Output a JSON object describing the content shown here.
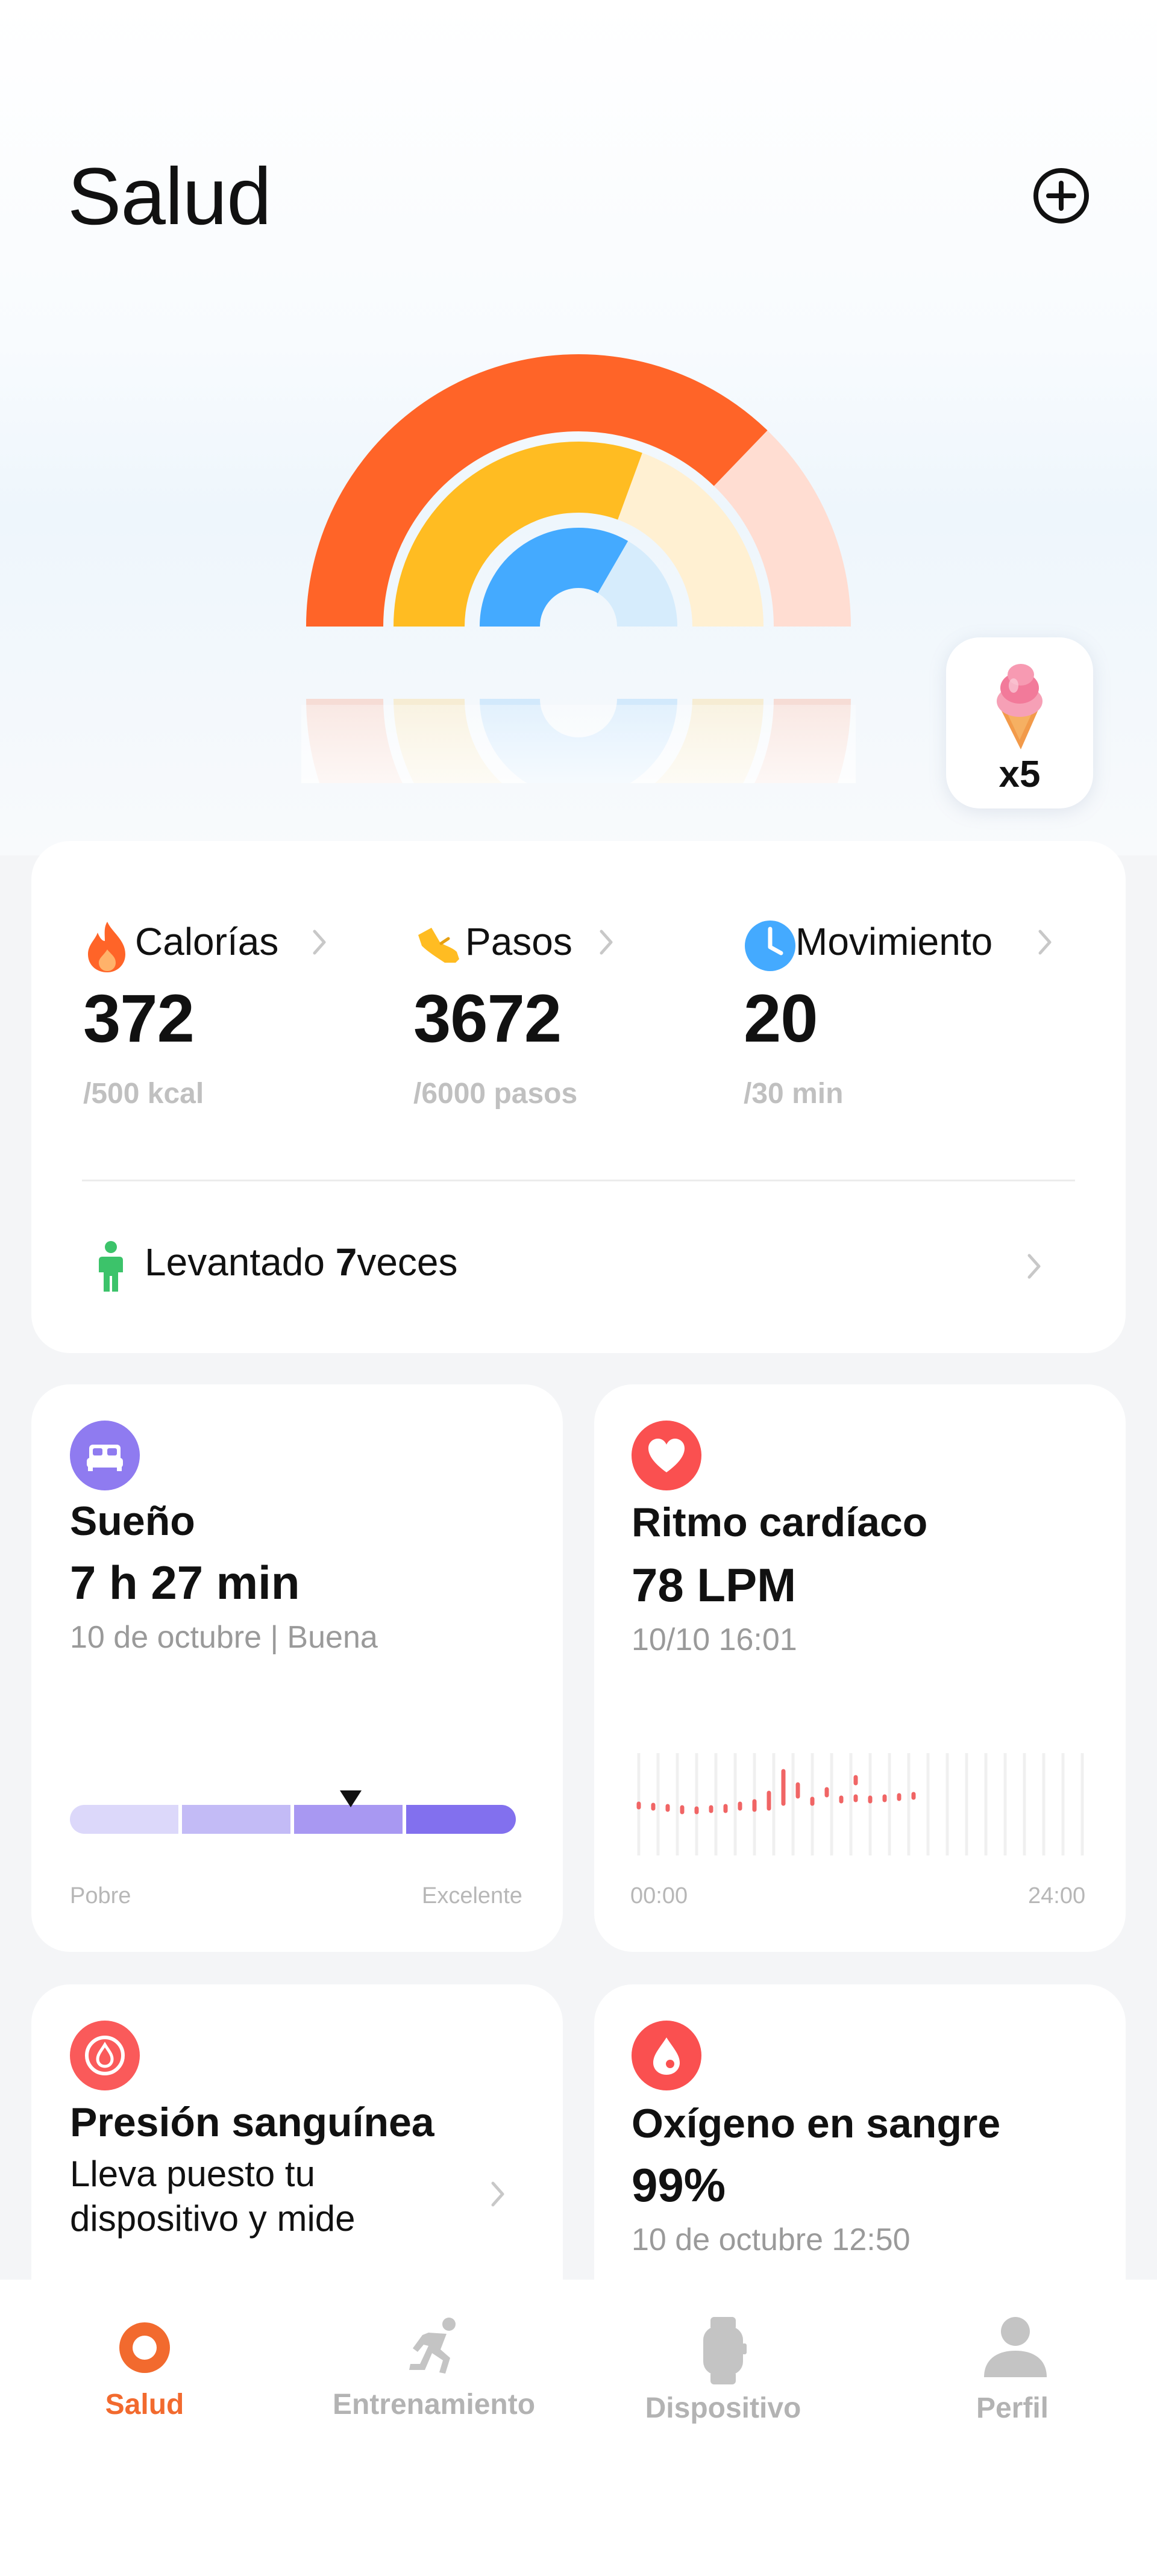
{
  "header": {
    "title": "Salud"
  },
  "colors": {
    "calories": "#ff6428",
    "steps": "#ffbc22",
    "movement": "#44aaff",
    "sleep": "#8f7bf0",
    "heart": "#fa5050",
    "nav_active": "#f26a2e"
  },
  "rings": [
    {
      "metric": "Calorías",
      "progress": 0.744
    },
    {
      "metric": "Pasos",
      "progress": 0.612
    },
    {
      "metric": "Movimiento",
      "progress": 0.667
    }
  ],
  "reward": {
    "icon": "ice-cream-icon",
    "count": "x5"
  },
  "activity": {
    "stats": [
      {
        "icon": "flame-icon",
        "label": "Calorías",
        "value": "372",
        "goal": "/500 kcal"
      },
      {
        "icon": "shoe-icon",
        "label": "Pasos",
        "value": "3672",
        "goal": "/6000 pasos"
      },
      {
        "icon": "clock-icon",
        "label": "Movimiento",
        "value": "20",
        "goal": "/30 min"
      }
    ],
    "stood": {
      "prefix": "Levantado ",
      "count": "7",
      "suffix": "veces"
    }
  },
  "sleep": {
    "title": "Sueño",
    "value": "7 h 27 min",
    "subtitle": "10 de octubre | Buena",
    "scale_min": "Pobre",
    "scale_max": "Excelente",
    "quality_level": 0.63
  },
  "heart": {
    "title": "Ritmo cardíaco",
    "value": "78 LPM",
    "subtitle": "10/10 16:01",
    "axis_start": "00:00",
    "axis_end": "24:00"
  },
  "blood_pressure": {
    "title": "Presión sanguínea",
    "line1": "Lleva puesto tu",
    "line2": "dispositivo y mide"
  },
  "oxygen": {
    "title": "Oxígeno en sangre",
    "value": "99%",
    "subtitle": "10 de octubre 12:50"
  },
  "nav": [
    {
      "icon": "ring-icon",
      "label": "Salud",
      "active": true
    },
    {
      "icon": "running-icon",
      "label": "Entrenamiento",
      "active": false
    },
    {
      "icon": "watch-icon",
      "label": "Dispositivo",
      "active": false
    },
    {
      "icon": "person-icon",
      "label": "Perfil",
      "active": false
    }
  ]
}
